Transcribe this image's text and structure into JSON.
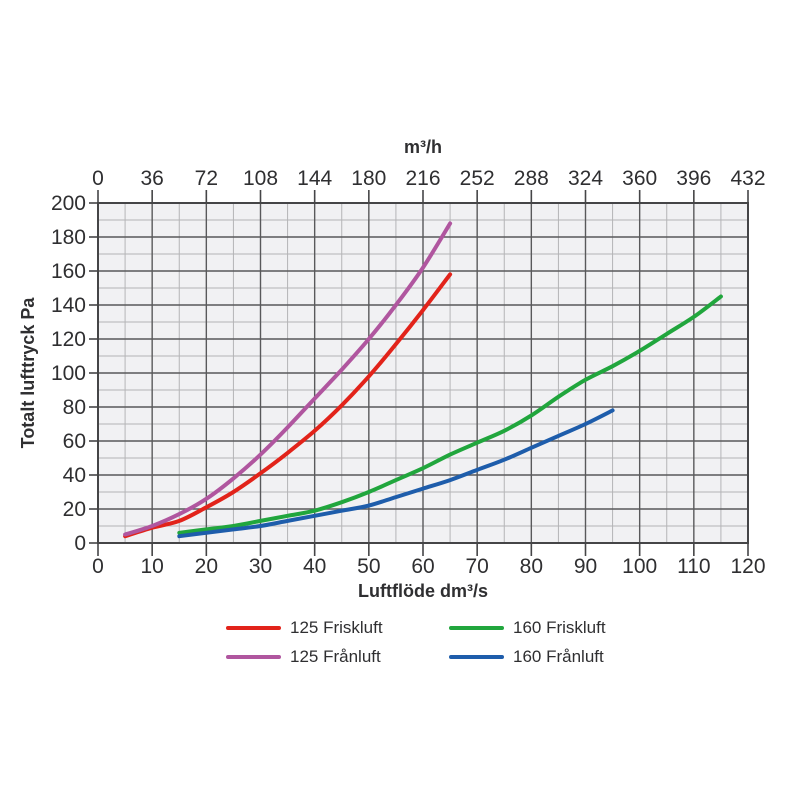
{
  "colors": {
    "plot_background": "#f1f1f3",
    "grid_minor": "#b4b4b6",
    "grid_major": "#59595b",
    "border": "#454547",
    "text": "#2f2f31"
  },
  "chart_data": {
    "type": "line",
    "xlabel": "Luftflöde dm³/s",
    "ylabel": "Totalt lufttryck Pa",
    "x_axis": {
      "min": 0,
      "max": 120,
      "ticks": [
        0,
        10,
        20,
        30,
        40,
        50,
        60,
        70,
        80,
        90,
        100,
        110,
        120
      ],
      "minor_step": 5
    },
    "top_axis": {
      "title": "m³/h",
      "min": 0,
      "max": 432,
      "ticks": [
        0,
        36,
        72,
        108,
        144,
        180,
        216,
        252,
        288,
        324,
        360,
        396,
        432
      ]
    },
    "y_axis": {
      "min": 0,
      "max": 200,
      "ticks": [
        0,
        20,
        40,
        60,
        80,
        100,
        120,
        140,
        160,
        180,
        200
      ],
      "minor_step": 10
    },
    "grid": "on",
    "legend_position": "bottom",
    "series": [
      {
        "name": "125 Friskluft",
        "color": "#e2231a",
        "points": [
          [
            5,
            4
          ],
          [
            10,
            9
          ],
          [
            15,
            13
          ],
          [
            20,
            21
          ],
          [
            25,
            30
          ],
          [
            30,
            41
          ],
          [
            35,
            53
          ],
          [
            40,
            66
          ],
          [
            45,
            81
          ],
          [
            50,
            98
          ],
          [
            55,
            117
          ],
          [
            60,
            137
          ],
          [
            65,
            158
          ]
        ]
      },
      {
        "name": "125 Frånluft",
        "color": "#b0569f",
        "points": [
          [
            5,
            5
          ],
          [
            10,
            10
          ],
          [
            15,
            17
          ],
          [
            20,
            26
          ],
          [
            25,
            38
          ],
          [
            30,
            52
          ],
          [
            35,
            68
          ],
          [
            40,
            85
          ],
          [
            45,
            102
          ],
          [
            50,
            120
          ],
          [
            55,
            140
          ],
          [
            60,
            162
          ],
          [
            65,
            188
          ]
        ]
      },
      {
        "name": "160 Friskluft",
        "color": "#21a63d",
        "points": [
          [
            15,
            6
          ],
          [
            20,
            8
          ],
          [
            25,
            10
          ],
          [
            30,
            13
          ],
          [
            35,
            16
          ],
          [
            40,
            19
          ],
          [
            45,
            24
          ],
          [
            50,
            30
          ],
          [
            55,
            37
          ],
          [
            60,
            44
          ],
          [
            65,
            52
          ],
          [
            70,
            59
          ],
          [
            75,
            66
          ],
          [
            80,
            75
          ],
          [
            85,
            86
          ],
          [
            90,
            96
          ],
          [
            95,
            104
          ],
          [
            100,
            113
          ],
          [
            105,
            123
          ],
          [
            110,
            133
          ],
          [
            115,
            145
          ]
        ]
      },
      {
        "name": "160 Frånluft",
        "color": "#1e5dab",
        "points": [
          [
            15,
            4
          ],
          [
            20,
            6
          ],
          [
            25,
            8
          ],
          [
            30,
            10
          ],
          [
            35,
            13
          ],
          [
            40,
            16
          ],
          [
            45,
            19
          ],
          [
            50,
            22
          ],
          [
            55,
            27
          ],
          [
            60,
            32
          ],
          [
            65,
            37
          ],
          [
            70,
            43
          ],
          [
            75,
            49
          ],
          [
            80,
            56
          ],
          [
            85,
            63
          ],
          [
            90,
            70
          ],
          [
            95,
            78
          ]
        ]
      }
    ],
    "legend_order": [
      0,
      2,
      1,
      3
    ]
  }
}
